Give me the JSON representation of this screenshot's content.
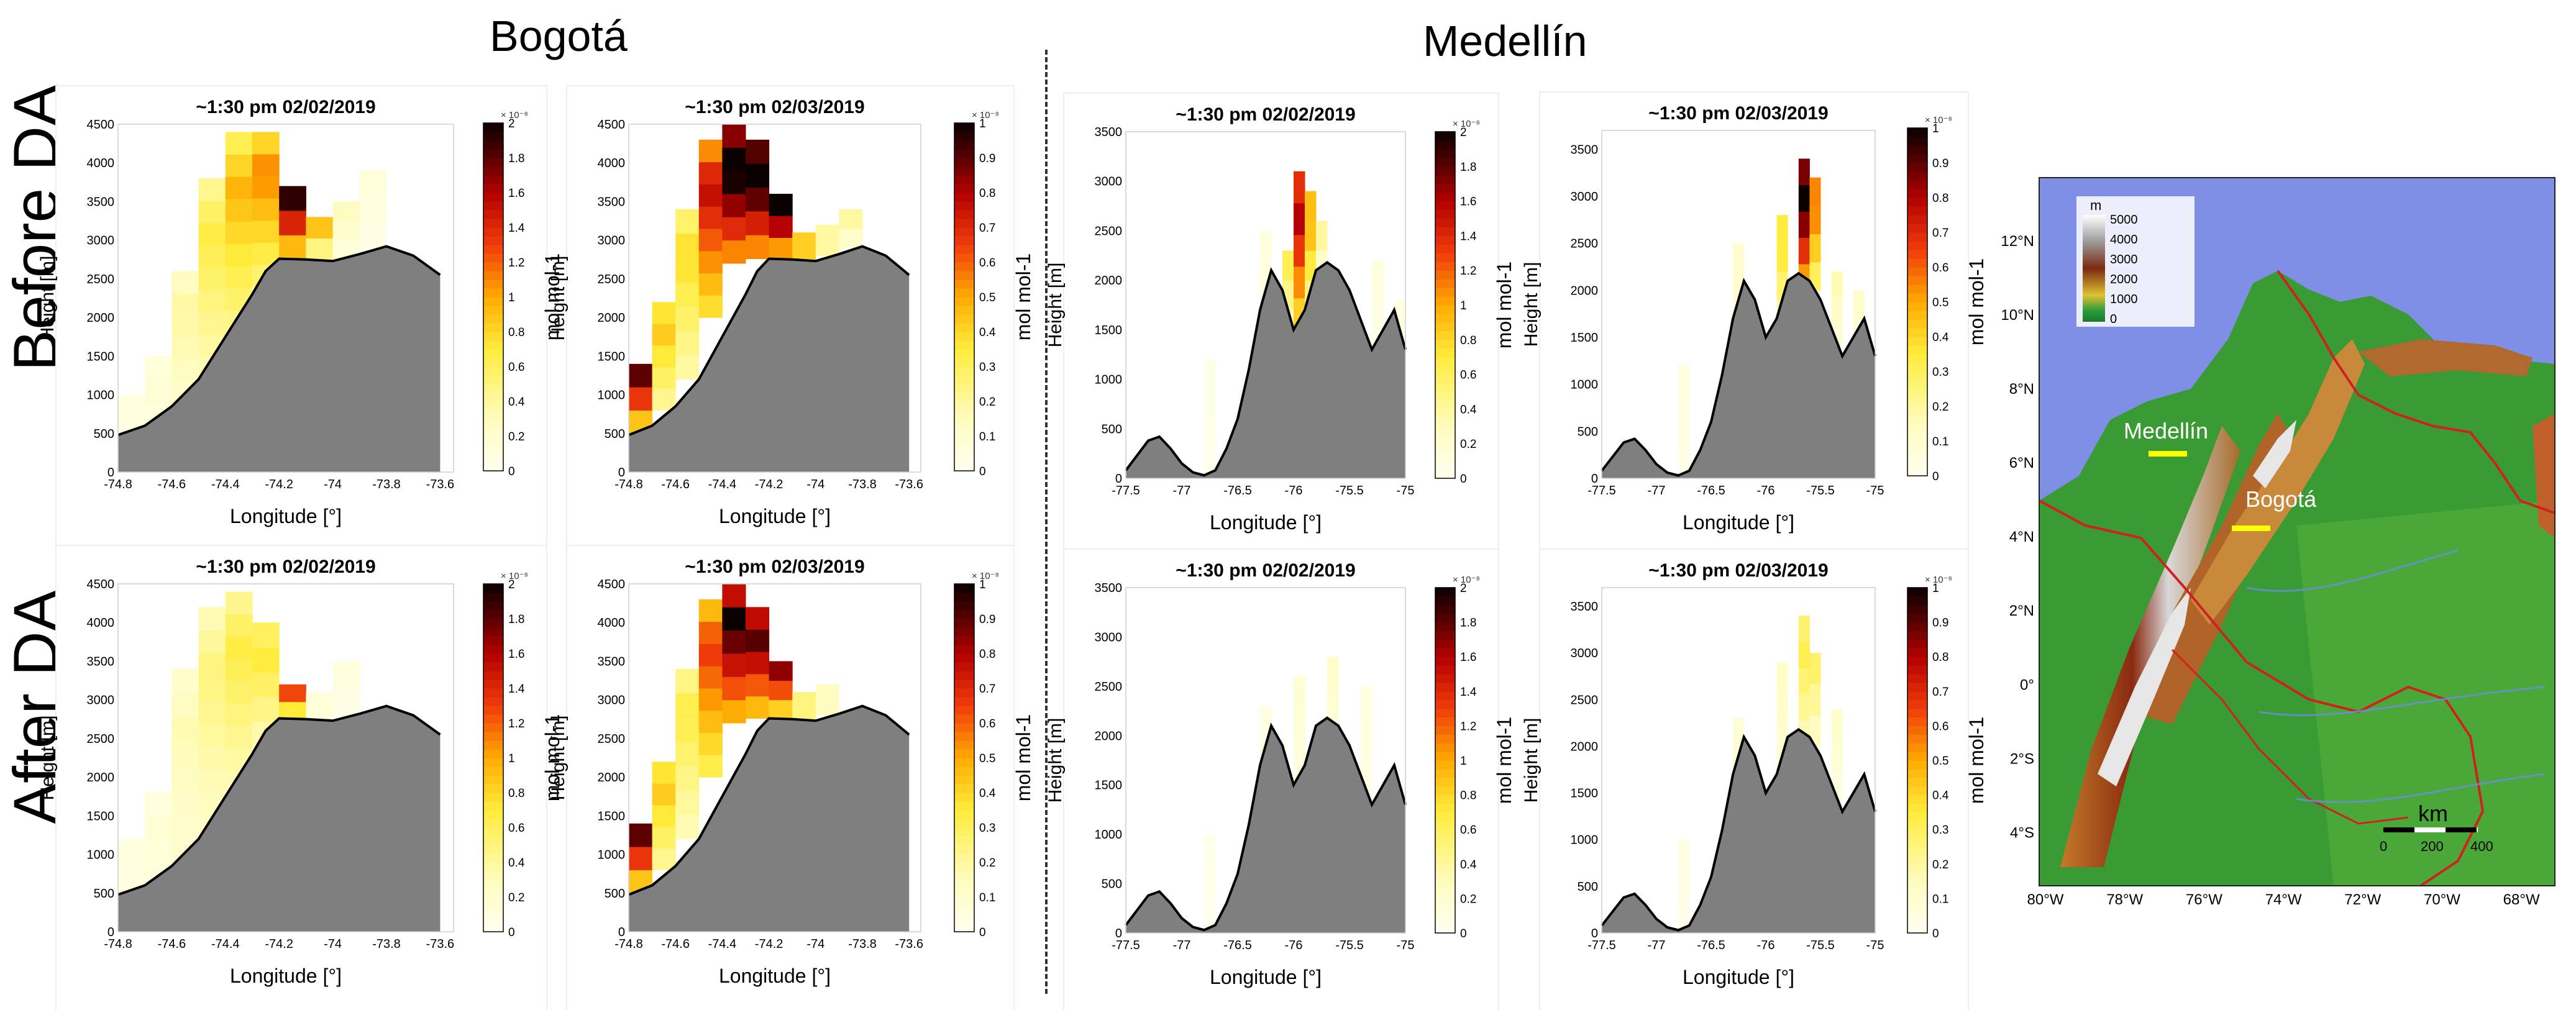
{
  "headers": {
    "bogota": "Bogotá",
    "medellin": "Medellín",
    "before": "Before DA",
    "after": "After DA"
  },
  "labels": {
    "height": "Height [m]",
    "longitude": "Longitude [°]",
    "cbar": "mol mol-1"
  },
  "cbar_sets": {
    "b2": {
      "ticks": [
        "0",
        "0.2",
        "0.4",
        "0.6",
        "0.8",
        "1",
        "1.2",
        "1.4",
        "1.6",
        "1.8",
        "2"
      ],
      "exponent": "× 10⁻⁸"
    },
    "b1": {
      "ticks": [
        "0",
        "0.1",
        "0.2",
        "0.3",
        "0.4",
        "0.5",
        "0.6",
        "0.7",
        "0.8",
        "0.9",
        "1"
      ],
      "exponent": "× 10⁻⁸"
    }
  },
  "chart_data": [
    {
      "type": "heatmap",
      "id": "bog-before-0202",
      "title": "~1:30 pm 02/02/2019",
      "xlabel": "Longitude [°]",
      "ylabel": "Height [m]",
      "xlim": [
        -74.8,
        -73.55
      ],
      "ylim": [
        0,
        4500
      ],
      "xticks": [
        "-74.8",
        "-74.6",
        "-74.4",
        "-74.2",
        "-74",
        "-73.8",
        "-73.6"
      ],
      "yticks": [
        "0",
        "500",
        "1000",
        "1500",
        "2000",
        "2500",
        "3000",
        "3500",
        "4000",
        "4500"
      ],
      "cbar": "b2",
      "terrain": "bog",
      "plume": "bog_before_0202",
      "colorbar_label": "mol mol-1"
    },
    {
      "type": "heatmap",
      "id": "bog-before-0203",
      "title": "~1:30 pm 02/03/2019",
      "xlabel": "Longitude [°]",
      "ylabel": "Height [m]",
      "xlim": [
        -74.8,
        -73.55
      ],
      "ylim": [
        0,
        4500
      ],
      "xticks": [
        "-74.8",
        "-74.6",
        "-74.4",
        "-74.2",
        "-74",
        "-73.8",
        "-73.6"
      ],
      "yticks": [
        "0",
        "500",
        "1000",
        "1500",
        "2000",
        "2500",
        "3000",
        "3500",
        "4000",
        "4500"
      ],
      "cbar": "b1",
      "terrain": "bog",
      "plume": "bog_before_0203",
      "colorbar_label": "mol mol-1"
    },
    {
      "type": "heatmap",
      "id": "med-before-0202",
      "title": "~1:30 pm 02/02/2019",
      "xlabel": "Longitude [°]",
      "ylabel": "Height [m]",
      "xlim": [
        -77.5,
        -75
      ],
      "ylim": [
        0,
        3500
      ],
      "xticks": [
        "-77.5",
        "-77",
        "-76.5",
        "-76",
        "-75.5",
        "-75"
      ],
      "yticks": [
        "0",
        "500",
        "1000",
        "1500",
        "2000",
        "2500",
        "3000",
        "3500"
      ],
      "cbar": "b2",
      "terrain": "med",
      "plume": "med_before_0202",
      "colorbar_label": "mol mol-1"
    },
    {
      "type": "heatmap",
      "id": "med-before-0203",
      "title": "~1:30 pm 02/03/2019",
      "xlabel": "Longitude [°]",
      "ylabel": "Height [m]",
      "xlim": [
        -77.5,
        -75
      ],
      "ylim": [
        0,
        3700
      ],
      "xticks": [
        "-77.5",
        "-77",
        "-76.5",
        "-76",
        "-75.5",
        "-75"
      ],
      "yticks": [
        "0",
        "500",
        "1000",
        "1500",
        "2000",
        "2500",
        "3000",
        "3500"
      ],
      "cbar": "b1",
      "terrain": "med",
      "plume": "med_before_0203",
      "colorbar_label": "mol mol-1"
    },
    {
      "type": "heatmap",
      "id": "bog-after-0202",
      "title": "~1:30 pm 02/02/2019",
      "xlabel": "Longitude [°]",
      "ylabel": "Height [m]",
      "xlim": [
        -74.8,
        -73.55
      ],
      "ylim": [
        0,
        4500
      ],
      "xticks": [
        "-74.8",
        "-74.6",
        "-74.4",
        "-74.2",
        "-74",
        "-73.8",
        "-73.6"
      ],
      "yticks": [
        "0",
        "500",
        "1000",
        "1500",
        "2000",
        "2500",
        "3000",
        "3500",
        "4000",
        "4500"
      ],
      "cbar": "b2",
      "terrain": "bog",
      "plume": "bog_after_0202",
      "colorbar_label": "mol mol-1"
    },
    {
      "type": "heatmap",
      "id": "bog-after-0203",
      "title": "~1:30 pm 02/03/2019",
      "xlabel": "Longitude [°]",
      "ylabel": "Height [m]",
      "xlim": [
        -74.8,
        -73.55
      ],
      "ylim": [
        0,
        4500
      ],
      "xticks": [
        "-74.8",
        "-74.6",
        "-74.4",
        "-74.2",
        "-74",
        "-73.8",
        "-73.6"
      ],
      "yticks": [
        "0",
        "500",
        "1000",
        "1500",
        "2000",
        "2500",
        "3000",
        "3500",
        "4000",
        "4500"
      ],
      "cbar": "b1",
      "terrain": "bog",
      "plume": "bog_after_0203",
      "colorbar_label": "mol mol-1"
    },
    {
      "type": "heatmap",
      "id": "med-after-0202",
      "title": "~1:30 pm 02/02/2019",
      "xlabel": "Longitude [°]",
      "ylabel": "Height [m]",
      "xlim": [
        -77.5,
        -75
      ],
      "ylim": [
        0,
        3500
      ],
      "xticks": [
        "-77.5",
        "-77",
        "-76.5",
        "-76",
        "-75.5",
        "-75"
      ],
      "yticks": [
        "0",
        "500",
        "1000",
        "1500",
        "2000",
        "2500",
        "3000",
        "3500"
      ],
      "cbar": "b2",
      "terrain": "med",
      "plume": "med_after_0202",
      "colorbar_label": "mol mol-1"
    },
    {
      "type": "heatmap",
      "id": "med-after-0203",
      "title": "~1:30 pm 02/03/2019",
      "xlabel": "Longitude [°]",
      "ylabel": "Height [m]",
      "xlim": [
        -77.5,
        -75
      ],
      "ylim": [
        0,
        3700
      ],
      "xticks": [
        "-77.5",
        "-77",
        "-76.5",
        "-76",
        "-75.5",
        "-75"
      ],
      "yticks": [
        "0",
        "500",
        "1000",
        "1500",
        "2000",
        "2500",
        "3000",
        "3500"
      ],
      "cbar": "b1",
      "terrain": "med",
      "plume": "med_after_0203",
      "colorbar_label": "mol mol-1"
    }
  ],
  "terrain": {
    "bog": {
      "x": [
        -74.8,
        -74.7,
        -74.6,
        -74.5,
        -74.4,
        -74.3,
        -74.25,
        -74.2,
        -74.1,
        -74.0,
        -73.9,
        -73.8,
        -73.7,
        -73.6
      ],
      "y": [
        480,
        600,
        850,
        1200,
        1750,
        2300,
        2600,
        2760,
        2750,
        2730,
        2820,
        2920,
        2800,
        2550
      ]
    },
    "med": {
      "x": [
        -77.5,
        -77.4,
        -77.3,
        -77.2,
        -77.1,
        -77.0,
        -76.9,
        -76.8,
        -76.7,
        -76.6,
        -76.5,
        -76.4,
        -76.3,
        -76.2,
        -76.1,
        -76.0,
        -75.9,
        -75.8,
        -75.7,
        -75.6,
        -75.5,
        -75.4,
        -75.3,
        -75.2,
        -75.1,
        -75.0
      ],
      "y": [
        80,
        230,
        380,
        420,
        300,
        150,
        60,
        30,
        80,
        300,
        600,
        1100,
        1700,
        2100,
        1900,
        1500,
        1700,
        2100,
        2180,
        2100,
        1900,
        1600,
        1300,
        1500,
        1700,
        1300
      ]
    }
  },
  "plumes": {
    "bog_before_0202": [
      [
        -74.75,
        0,
        1000,
        0.1
      ],
      [
        -74.65,
        0,
        1500,
        0.15
      ],
      [
        -74.55,
        600,
        2600,
        0.35
      ],
      [
        -74.45,
        1200,
        3800,
        0.6
      ],
      [
        -74.35,
        1800,
        4400,
        0.85
      ],
      [
        -74.25,
        2400,
        4400,
        1.0
      ],
      [
        -74.15,
        2750,
        3700,
        1.7
      ],
      [
        -74.05,
        2750,
        3300,
        0.9
      ],
      [
        -73.95,
        2750,
        3500,
        0.25
      ],
      [
        -73.85,
        2900,
        3900,
        0.12
      ]
    ],
    "bog_before_0203": [
      [
        -74.75,
        500,
        1400,
        0.8
      ],
      [
        -74.65,
        800,
        2200,
        0.4
      ],
      [
        -74.55,
        1200,
        3400,
        0.35
      ],
      [
        -74.45,
        2000,
        4300,
        0.7
      ],
      [
        -74.35,
        2700,
        4500,
        1.0
      ],
      [
        -74.25,
        2760,
        4300,
        1.0
      ],
      [
        -74.15,
        2750,
        3600,
        0.95
      ],
      [
        -74.05,
        2730,
        3100,
        0.75
      ],
      [
        -73.95,
        2800,
        3200,
        0.35
      ],
      [
        -73.85,
        2900,
        3400,
        0.2
      ]
    ],
    "med_before_0202": [
      [
        -76.75,
        0,
        1200,
        0.05
      ],
      [
        -76.25,
        1200,
        2500,
        0.1
      ],
      [
        -76.05,
        1400,
        2300,
        0.55
      ],
      [
        -75.95,
        1500,
        3100,
        1.5
      ],
      [
        -75.85,
        1700,
        2900,
        0.9
      ],
      [
        -75.75,
        2000,
        2600,
        0.4
      ],
      [
        -75.25,
        1200,
        2200,
        0.1
      ],
      [
        -75.05,
        1200,
        1800,
        0.08
      ]
    ],
    "med_before_0203": [
      [
        -76.75,
        0,
        1200,
        0.05
      ],
      [
        -76.25,
        1200,
        2500,
        0.1
      ],
      [
        -75.85,
        1600,
        2800,
        0.35
      ],
      [
        -75.65,
        2000,
        3400,
        0.95
      ],
      [
        -75.55,
        2000,
        3200,
        0.55
      ],
      [
        -75.35,
        1400,
        2200,
        0.15
      ],
      [
        -75.15,
        1200,
        2000,
        0.1
      ]
    ],
    "bog_after_0202": [
      [
        -74.75,
        0,
        1200,
        0.1
      ],
      [
        -74.65,
        0,
        1800,
        0.15
      ],
      [
        -74.55,
        600,
        3400,
        0.3
      ],
      [
        -74.45,
        1200,
        4200,
        0.45
      ],
      [
        -74.35,
        1800,
        4400,
        0.6
      ],
      [
        -74.25,
        2400,
        4000,
        0.65
      ],
      [
        -74.15,
        2750,
        3200,
        1.3
      ],
      [
        -74.05,
        2750,
        3100,
        0.25
      ],
      [
        -73.95,
        2800,
        3500,
        0.12
      ]
    ],
    "bog_after_0203": [
      [
        -74.75,
        500,
        1400,
        0.8
      ],
      [
        -74.65,
        800,
        2200,
        0.4
      ],
      [
        -74.55,
        1200,
        3400,
        0.3
      ],
      [
        -74.45,
        2000,
        4300,
        0.6
      ],
      [
        -74.35,
        2700,
        4500,
        0.9
      ],
      [
        -74.25,
        2760,
        4200,
        0.85
      ],
      [
        -74.15,
        2750,
        3500,
        0.75
      ],
      [
        -74.05,
        2730,
        3100,
        0.45
      ],
      [
        -73.95,
        2800,
        3200,
        0.25
      ]
    ],
    "med_after_0202": [
      [
        -76.75,
        0,
        1000,
        0.04
      ],
      [
        -76.25,
        1200,
        2300,
        0.08
      ],
      [
        -75.95,
        1500,
        2600,
        0.18
      ],
      [
        -75.65,
        1800,
        2800,
        0.2
      ],
      [
        -75.35,
        1300,
        2500,
        0.1
      ]
    ],
    "med_after_0203": [
      [
        -76.75,
        0,
        1000,
        0.04
      ],
      [
        -76.25,
        1200,
        2300,
        0.08
      ],
      [
        -75.85,
        1600,
        2900,
        0.12
      ],
      [
        -75.65,
        2000,
        3400,
        0.3
      ],
      [
        -75.55,
        2000,
        3000,
        0.25
      ],
      [
        -75.35,
        1400,
        2400,
        0.1
      ]
    ]
  },
  "map": {
    "legend_title": "m",
    "legend_ticks": [
      "5000",
      "4000",
      "3000",
      "2000",
      "1000",
      "0"
    ],
    "lon_ticks": [
      "80°W",
      "78°W",
      "76°W",
      "74°W",
      "72°W",
      "70°W",
      "68°W"
    ],
    "lat_ticks": [
      "12°N",
      "10°N",
      "8°N",
      "6°N",
      "4°N",
      "2°N",
      "0°",
      "2°S",
      "4°S"
    ],
    "city1": "Medellín",
    "city2": "Bogotá",
    "scale_unit": "km",
    "scale_ticks": [
      "0",
      "200",
      "400"
    ]
  }
}
